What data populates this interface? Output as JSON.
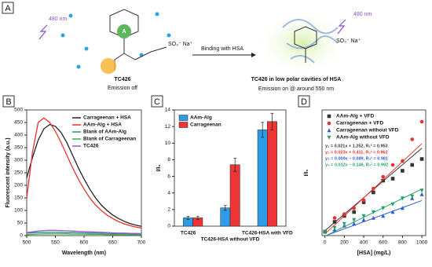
{
  "scheme": {
    "panel": "A",
    "light_left": "480 nm",
    "light_right": "480 nm",
    "arrow_label": "Binding with HSA",
    "ring_label": "A",
    "left_group": "SO₃⁻ Na⁺",
    "right_group": "SO₃⁻ Na⁺",
    "left_name": "TC426",
    "left_caption": "Emission off",
    "right_name": "TC426 in low polar cavities of HSA",
    "right_caption": "Emission on @ around 550 nm"
  },
  "chart_data": [
    {
      "type": "line",
      "panel": "B",
      "xlabel": "Wavelength (nm)",
      "ylabel": "Fluorescent intensity (a.u.)",
      "xlim": [
        500,
        700
      ],
      "xticks": [
        500,
        550,
        600,
        650,
        700
      ],
      "ylim": [
        0,
        500
      ],
      "yticks": [
        0,
        50,
        100,
        150,
        200,
        250,
        300,
        350,
        400,
        450,
        500
      ],
      "x": [
        500,
        510,
        520,
        530,
        540,
        550,
        560,
        570,
        580,
        590,
        600,
        610,
        620,
        630,
        640,
        650,
        660,
        670,
        680,
        690,
        700
      ],
      "legend": "upper right",
      "series": [
        {
          "name": "Carrageenan + HSA",
          "color": "#222222",
          "values": [
            230,
            310,
            380,
            425,
            442,
            435,
            410,
            370,
            320,
            270,
            225,
            185,
            150,
            122,
            100,
            82,
            68,
            57,
            48,
            42,
            37
          ]
        },
        {
          "name": "AAm-Alg + HSA",
          "color": "#e8312f",
          "values": [
            150,
            330,
            450,
            468,
            450,
            415,
            370,
            320,
            270,
            225,
            185,
            150,
            122,
            100,
            82,
            68,
            56,
            47,
            40,
            34,
            30
          ]
        },
        {
          "name": "Blank of AAm-Alg",
          "color": "#2a8a8a",
          "values": [
            10,
            11,
            12,
            13,
            13,
            13,
            13,
            12,
            12,
            11,
            11,
            10,
            10,
            9,
            9,
            8,
            8,
            8,
            7,
            7,
            7
          ]
        },
        {
          "name": "Blank of Carrageenan",
          "color": "#3cb44b",
          "values": [
            4,
            5,
            6,
            7,
            7,
            7,
            7,
            7,
            6,
            6,
            6,
            5,
            5,
            5,
            4,
            4,
            4,
            4,
            3,
            3,
            3
          ]
        },
        {
          "name": "TC426",
          "color": "#9b59d0",
          "values": [
            12,
            15,
            18,
            20,
            21,
            21,
            20,
            19,
            18,
            17,
            16,
            15,
            14,
            13,
            12,
            11,
            10,
            10,
            9,
            9,
            8
          ]
        }
      ]
    },
    {
      "type": "bar",
      "panel": "C",
      "ylabel": "I/I₀",
      "ylim": [
        0,
        14
      ],
      "yticks": [
        0,
        2,
        4,
        6,
        8,
        10,
        12,
        14
      ],
      "categories": [
        "TC426",
        "TC426-HSA without VFD",
        "TC426-HSA with VFD"
      ],
      "legend": "upper left",
      "series": [
        {
          "name": "AAm-Alg",
          "color": "#2e9be6",
          "values": [
            1.0,
            2.2,
            11.6
          ],
          "errors": [
            0.2,
            0.3,
            0.9
          ]
        },
        {
          "name": "Carrageenan",
          "color": "#ee3434",
          "values": [
            1.0,
            7.4,
            12.6
          ],
          "errors": [
            0.2,
            0.8,
            1.0
          ]
        }
      ]
    },
    {
      "type": "scatter",
      "panel": "D",
      "xlabel": "[HSA] (mg/L)",
      "ylabel": "I/I₀",
      "xlim": [
        -30,
        1040
      ],
      "xticks": [
        0,
        200,
        400,
        600,
        800,
        1000
      ],
      "ylim": [
        0,
        32
      ],
      "legend": "upper left",
      "x": [
        0,
        100,
        200,
        300,
        400,
        500,
        600,
        700,
        800,
        900,
        1000
      ],
      "series": [
        {
          "name": "AAm-Alg + VFD",
          "color": "#333333",
          "marker": "square",
          "values": [
            1,
            3.5,
            5,
            6,
            8.5,
            11,
            14,
            14.5,
            16.5,
            18,
            19.5
          ],
          "fit": {
            "slope": 0.021,
            "intercept": 1.252,
            "label": "y₁ = 0.021x + 1.252, R₁² = 0.953"
          }
        },
        {
          "name": "Carrageenan + VFD",
          "color": "#e8312f",
          "marker": "circle",
          "values": [
            1,
            4.5,
            5.5,
            7,
            9,
            12,
            15,
            18,
            19,
            24.5,
            29
          ],
          "fit": {
            "slope": 0.023,
            "intercept": 0.411,
            "label": "y₂ = 0.023x + 0.411, R₂² = 0.962"
          }
        },
        {
          "name": "Carrageenan without VFD",
          "color": "#2f5fd0",
          "marker": "triangle",
          "values": [
            1,
            1.5,
            2.5,
            3,
            4,
            4.5,
            5,
            6,
            7,
            9.5,
            10.5
          ],
          "fit": {
            "slope": 0.009,
            "intercept": -0.089,
            "label": "y₃ = 0.009x – 0.089, R₃² = 0.981"
          }
        },
        {
          "name": "AAm-Alg without VFD",
          "color": "#22a06b",
          "marker": "down",
          "values": [
            1,
            2,
            3,
            4,
            5,
            6,
            7,
            8,
            9.5,
            10,
            11.5
          ],
          "fit": {
            "slope": 0.012,
            "intercept": -0.146,
            "label": "y₄ = 0.012x – 0.146, R₄² = 0.992"
          }
        }
      ]
    }
  ]
}
